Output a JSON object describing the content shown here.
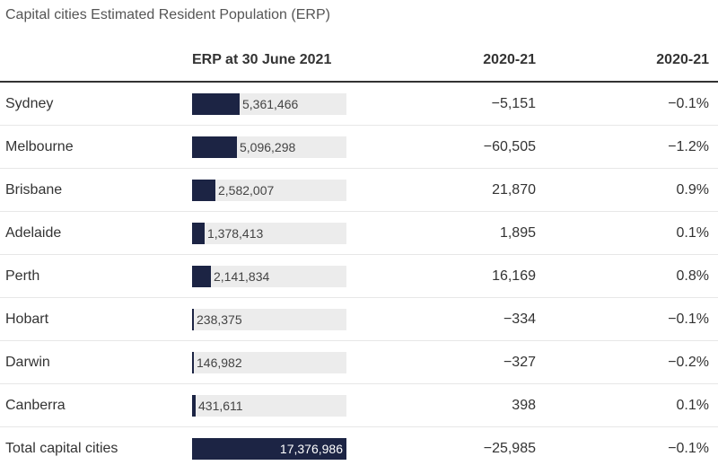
{
  "title": "Capital cities Estimated Resident Population (ERP)",
  "header": {
    "city": "",
    "erp": "ERP at 30 June 2021",
    "change": "2020-21",
    "pct": "2020-21"
  },
  "colors": {
    "bar": "#1c2444",
    "track": "#ececec"
  },
  "rows": [
    {
      "city": "Sydney",
      "erp_value": 5361466,
      "erp": "5,361,466",
      "change": "−5,151",
      "pct": "−0.1%"
    },
    {
      "city": "Melbourne",
      "erp_value": 5096298,
      "erp": "5,096,298",
      "change": "−60,505",
      "pct": "−1.2%"
    },
    {
      "city": "Brisbane",
      "erp_value": 2582007,
      "erp": "2,582,007",
      "change": "21,870",
      "pct": "0.9%"
    },
    {
      "city": "Adelaide",
      "erp_value": 1378413,
      "erp": "1,378,413",
      "change": "1,895",
      "pct": "0.1%"
    },
    {
      "city": "Perth",
      "erp_value": 2141834,
      "erp": "2,141,834",
      "change": "16,169",
      "pct": "0.8%"
    },
    {
      "city": "Hobart",
      "erp_value": 238375,
      "erp": "238,375",
      "change": "−334",
      "pct": "−0.1%"
    },
    {
      "city": "Darwin",
      "erp_value": 146982,
      "erp": "146,982",
      "change": "−327",
      "pct": "−0.2%"
    },
    {
      "city": "Canberra",
      "erp_value": 431611,
      "erp": "431,611",
      "change": "398",
      "pct": "0.1%"
    }
  ],
  "total": {
    "city": "Total capital cities",
    "erp_value": 17376986,
    "erp": "17,376,986",
    "change": "−25,985",
    "pct": "−0.1%"
  }
}
